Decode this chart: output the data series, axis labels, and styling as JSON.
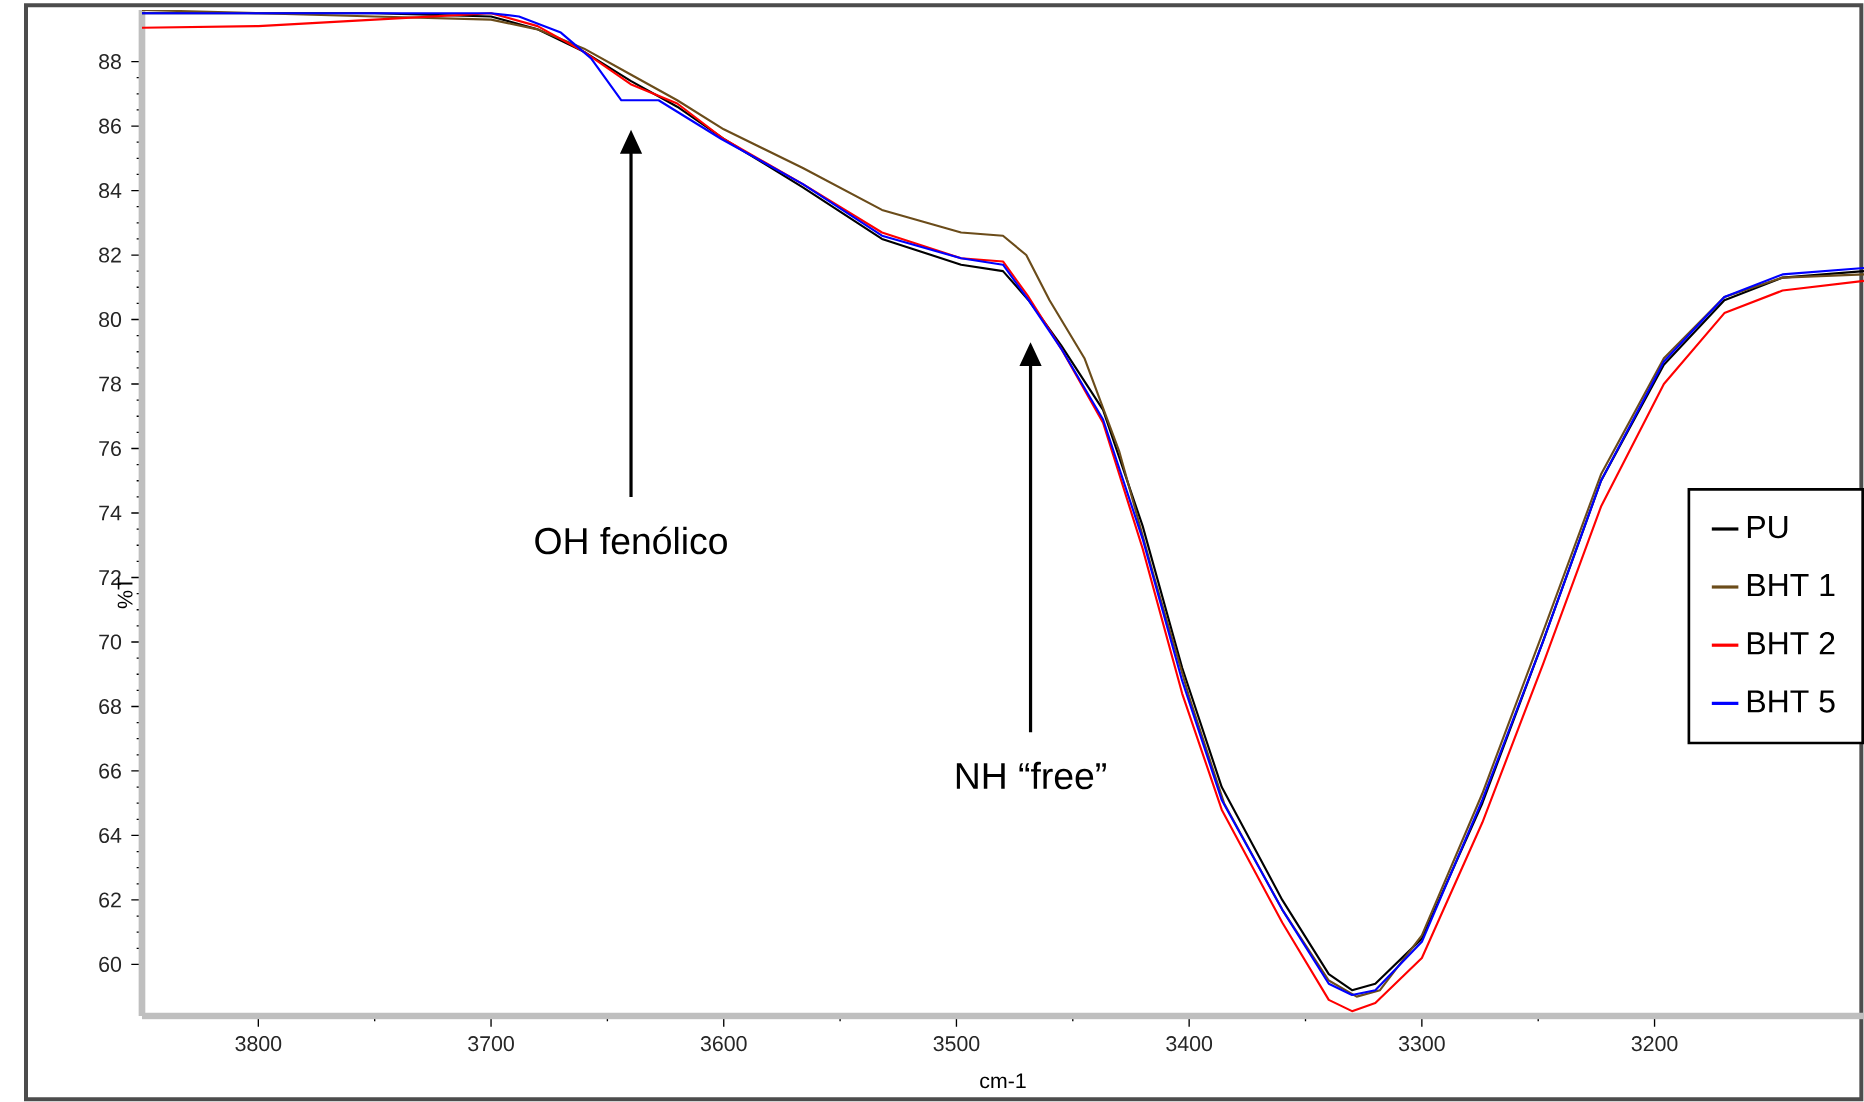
{
  "chart_data": {
    "type": "line",
    "xlabel": "cm-1",
    "ylabel": "%T",
    "xlim": [
      3850,
      3110
    ],
    "ylim": [
      58.4,
      89.6
    ],
    "xticks": [
      3800,
      3700,
      3600,
      3500,
      3400,
      3300,
      3200
    ],
    "yticks": [
      60,
      62,
      64,
      66,
      68,
      70,
      72,
      74,
      76,
      78,
      80,
      82,
      84,
      86,
      88
    ],
    "grid": false,
    "legend": "right",
    "marker": "none",
    "line_style": "solid",
    "annotations": [
      "OH fenólico",
      "NH “free”"
    ],
    "series": [
      {
        "name": "PU",
        "color": "#000000",
        "x": [
          3850,
          3800,
          3750,
          3700,
          3680,
          3660,
          3640,
          3620,
          3600,
          3566,
          3532,
          3498,
          3480,
          3469,
          3455,
          3437,
          3420,
          3403,
          3386,
          3360,
          3340,
          3330,
          3320,
          3300,
          3274,
          3248,
          3223,
          3196,
          3170,
          3145,
          3110
        ],
        "values": [
          89.5,
          89.5,
          89.5,
          89.4,
          89.0,
          88.3,
          87.4,
          86.6,
          85.6,
          84.1,
          82.5,
          81.7,
          81.5,
          80.6,
          79.2,
          77.2,
          73.6,
          69.2,
          65.5,
          62.0,
          59.7,
          59.2,
          59.4,
          60.8,
          65.0,
          70.0,
          75.0,
          78.6,
          80.6,
          81.3,
          81.5
        ]
      },
      {
        "name": "BHT 1",
        "color": "#6b4c1a",
        "x": [
          3850,
          3800,
          3750,
          3700,
          3680,
          3660,
          3640,
          3620,
          3600,
          3566,
          3532,
          3498,
          3480,
          3470,
          3460,
          3445,
          3430,
          3415,
          3400,
          3385,
          3360,
          3340,
          3328,
          3318,
          3300,
          3274,
          3248,
          3223,
          3196,
          3170,
          3145,
          3110
        ],
        "values": [
          89.6,
          89.5,
          89.4,
          89.3,
          89.0,
          88.4,
          87.6,
          86.8,
          85.9,
          84.7,
          83.4,
          82.7,
          82.6,
          82.0,
          80.6,
          78.8,
          75.9,
          72.0,
          68.3,
          65.0,
          61.7,
          59.5,
          59.0,
          59.2,
          60.9,
          65.3,
          70.3,
          75.2,
          78.8,
          80.7,
          81.3,
          81.4
        ]
      },
      {
        "name": "BHT 2",
        "color": "#ff0000",
        "x": [
          3850,
          3800,
          3750,
          3700,
          3680,
          3660,
          3640,
          3620,
          3600,
          3566,
          3532,
          3498,
          3480,
          3469,
          3455,
          3437,
          3420,
          3403,
          3386,
          3360,
          3340,
          3330,
          3320,
          3300,
          3274,
          3248,
          3223,
          3196,
          3170,
          3145,
          3110
        ],
        "values": [
          89.05,
          89.1,
          89.3,
          89.5,
          89.1,
          88.3,
          87.3,
          86.7,
          85.6,
          84.2,
          82.7,
          81.9,
          81.8,
          80.7,
          79.1,
          76.8,
          72.9,
          68.4,
          64.8,
          61.3,
          58.9,
          58.55,
          58.8,
          60.2,
          64.4,
          69.3,
          74.2,
          78.0,
          80.2,
          80.9,
          81.2
        ]
      },
      {
        "name": "BHT 5",
        "color": "#0000ff",
        "x": [
          3850,
          3800,
          3750,
          3700,
          3688,
          3670,
          3657,
          3644,
          3628,
          3601,
          3566,
          3532,
          3498,
          3480,
          3469,
          3455,
          3437,
          3420,
          3403,
          3386,
          3360,
          3340,
          3330,
          3320,
          3300,
          3274,
          3248,
          3223,
          3196,
          3170,
          3145,
          3110
        ],
        "values": [
          89.5,
          89.5,
          89.5,
          89.5,
          89.4,
          88.9,
          88.1,
          86.8,
          86.8,
          85.6,
          84.2,
          82.6,
          81.9,
          81.7,
          80.6,
          79.1,
          76.9,
          73.2,
          68.8,
          65.1,
          61.7,
          59.4,
          59.05,
          59.2,
          60.7,
          65.1,
          70.0,
          75.0,
          78.7,
          80.7,
          81.4,
          81.6
        ]
      }
    ]
  }
}
